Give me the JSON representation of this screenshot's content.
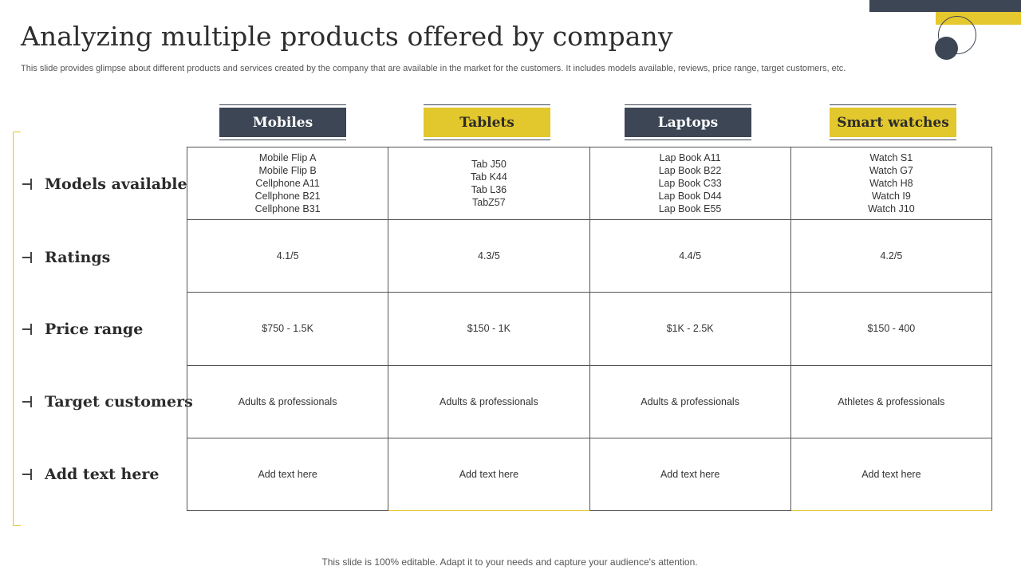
{
  "title": "Analyzing multiple products offered by company",
  "subtitle": "This slide provides glimpse about different products and services created by the company that are available in the market for the customers. It includes models available, reviews, price range, target customers, etc.",
  "columns": [
    {
      "label": "Mobiles",
      "style": "dark"
    },
    {
      "label": "Tablets",
      "style": "yellow"
    },
    {
      "label": "Laptops",
      "style": "dark"
    },
    {
      "label": "Smart watches",
      "style": "yellow"
    }
  ],
  "rows": [
    {
      "label": "Models available"
    },
    {
      "label": "Ratings"
    },
    {
      "label": "Price range"
    },
    {
      "label": "Target customers"
    },
    {
      "label": "Add text here"
    }
  ],
  "models": {
    "mobiles": [
      "Mobile Flip A",
      "Mobile Flip B",
      "Cellphone A11",
      "Cellphone B21",
      "Cellphone B31"
    ],
    "tablets": [
      "Tab J50",
      "Tab K44",
      "Tab L36",
      "TabZ57"
    ],
    "laptops": [
      "Lap Book A11",
      "Lap Book B22",
      "Lap Book C33",
      "Lap Book D44",
      "Lap Book E55"
    ],
    "smart_watches": [
      "Watch S1",
      "Watch G7",
      "Watch H8",
      "Watch I9",
      "Watch J10"
    ]
  },
  "ratings": [
    "4.1/5",
    "4.3/5",
    "4.4/5",
    "4.2/5"
  ],
  "price_range": [
    "$750 - 1.5K",
    "$150 - 1K",
    "$1K - 2.5K",
    "$150 - 400"
  ],
  "target_customers": [
    "Adults & professionals",
    "Adults & professionals",
    "Adults & professionals",
    "Athletes & professionals"
  ],
  "add_text": [
    "Add text here",
    "Add text here",
    "Add text here",
    "Add text here"
  ],
  "footer": "This slide is 100% editable. Adapt it to your needs and capture your audience's attention.",
  "colors": {
    "dark": "#3c4654",
    "accent": "#e2c72d"
  }
}
